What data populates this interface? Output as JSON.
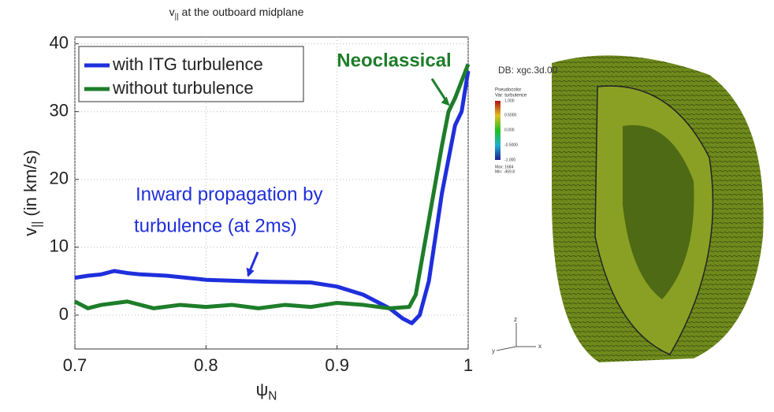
{
  "chart_data": {
    "type": "line",
    "title": {
      "main": "v",
      "sub": "||",
      "rest": " at the outboard midplane"
    },
    "y_label": {
      "main": "v",
      "sub": "||",
      "rest": " (in km/s)"
    },
    "x_label": {
      "main": "ψ",
      "sub": "N"
    },
    "xlim": [
      0.7,
      1
    ],
    "xticks": [
      0.7,
      0.8,
      0.9,
      1
    ],
    "ylim": [
      -5,
      41
    ],
    "yticks": [
      0,
      10,
      20,
      30,
      40
    ],
    "grid": true,
    "legend": "top-left",
    "series": [
      {
        "name": "with ITG turbulence",
        "color": "#1f2fdc",
        "x": [
          0.7,
          0.71,
          0.72,
          0.73,
          0.74,
          0.75,
          0.77,
          0.8,
          0.83,
          0.85,
          0.88,
          0.9,
          0.92,
          0.94,
          0.95,
          0.957,
          0.963,
          0.97,
          0.98,
          0.99,
          0.995,
          1.0
        ],
        "values": [
          5.5,
          5.8,
          6.0,
          6.5,
          6.2,
          6.0,
          5.8,
          5.2,
          5.0,
          4.9,
          4.8,
          4.2,
          3.0,
          1.0,
          -0.5,
          -1.2,
          0.0,
          5.0,
          18.0,
          28.0,
          30.0,
          36.0
        ]
      },
      {
        "name": "without turbulence",
        "color": "#1e7d2a",
        "x": [
          0.7,
          0.71,
          0.72,
          0.74,
          0.76,
          0.78,
          0.8,
          0.82,
          0.84,
          0.86,
          0.88,
          0.9,
          0.92,
          0.94,
          0.955,
          0.96,
          0.97,
          0.98,
          0.985,
          0.99,
          1.0
        ],
        "values": [
          2.0,
          1.0,
          1.5,
          2.0,
          1.0,
          1.5,
          1.2,
          1.5,
          1.0,
          1.5,
          1.2,
          1.8,
          1.5,
          1.0,
          1.2,
          3.0,
          14.0,
          25.0,
          30.0,
          32.0,
          37.0
        ]
      }
    ],
    "annotations": [
      {
        "text": [
          "Inward propagation by",
          "turbulence (at 2ms)"
        ],
        "color": "#1f2fdc",
        "x": 0.832,
        "y": 4.9
      },
      {
        "text": [
          "Neoclassical"
        ],
        "color": "#1e7d2a",
        "x": 0.986,
        "y": 32
      }
    ]
  },
  "visualization": {
    "db": "DB: xgc.3d.00",
    "var": [
      "Pseudocolor",
      "Var: turbulence"
    ],
    "colorbar": [
      "1.000",
      "0.5000",
      "0.000",
      "-0.5000",
      "-1.000"
    ],
    "minmax": [
      "Max: 1684",
      "Min: -459.8"
    ],
    "axes": [
      "z",
      "y",
      "x"
    ]
  }
}
